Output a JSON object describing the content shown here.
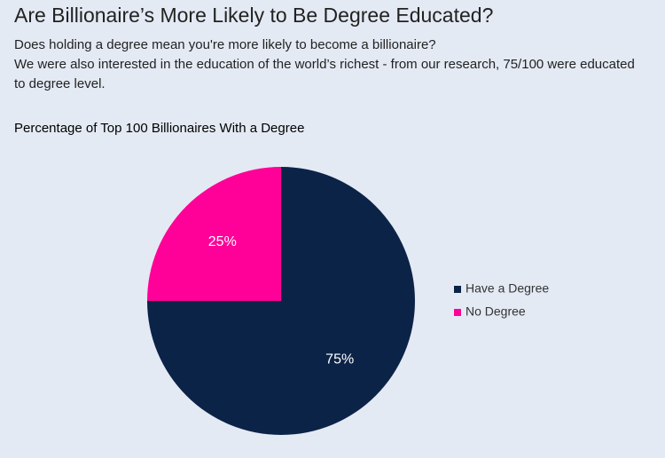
{
  "header": {
    "title": "Are Billionaire’s More Likely to Be Degree Educated?",
    "paragraphs": [
      "Does holding a degree mean you're more likely to become a billionaire?",
      "We were also interested in the education of the world’s richest - from our research, 75/100 were educated to degree level."
    ]
  },
  "chart_data": {
    "type": "pie",
    "title": "Percentage of Top 100 Billionaires With a Degree",
    "categories": [
      "Have a Degree",
      "No Degree"
    ],
    "values": [
      75,
      25
    ],
    "value_labels": [
      "75%",
      "25%"
    ],
    "colors": [
      "#0c2348",
      "#ff0098"
    ]
  }
}
